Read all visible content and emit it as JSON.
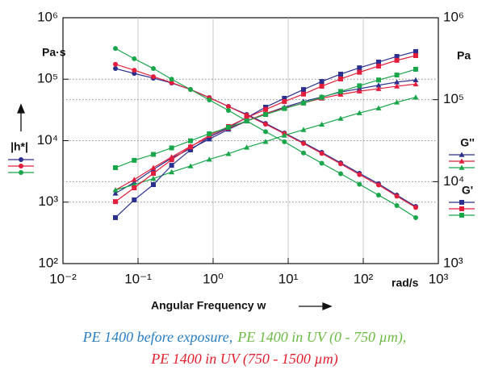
{
  "chart_data": {
    "type": "line",
    "log_x": true,
    "log_y": true,
    "grid": true,
    "x_label": "Angular Frequency w",
    "x_unit": "rad/s",
    "y_unit": "Pa·s",
    "y2_unit": "Pa",
    "xlim": [
      0.01,
      1000
    ],
    "xticks": [
      {
        "value": 0.01,
        "label": "10⁻²"
      },
      {
        "value": 0.1,
        "label": "10⁻¹"
      },
      {
        "value": 1,
        "label": "10⁰"
      },
      {
        "value": 10,
        "label": "10¹"
      },
      {
        "value": 100,
        "label": "10²"
      },
      {
        "value": 1000,
        "label": "10³"
      }
    ],
    "ylim": [
      100,
      1000000
    ],
    "yticks": [
      {
        "value": 100,
        "label": "10²"
      },
      {
        "value": 1000,
        "label": "10³"
      },
      {
        "value": 10000,
        "label": "10⁴"
      },
      {
        "value": 100000,
        "label": "10⁵"
      },
      {
        "value": 1000000,
        "label": "10⁶"
      }
    ],
    "y2lim": [
      1000,
      1000000
    ],
    "y2ticks": [
      {
        "value": 1000,
        "label": "10³"
      },
      {
        "value": 10000,
        "label": "10⁴"
      },
      {
        "value": 100000,
        "label": "10⁵"
      },
      {
        "value": 1000000,
        "label": "10⁶"
      }
    ],
    "x": [
      0.05,
      0.089,
      0.16,
      0.28,
      0.5,
      0.89,
      1.6,
      2.8,
      5,
      8.9,
      16,
      28,
      50,
      89,
      160,
      280,
      500
    ],
    "groups": [
      {
        "label": "|h*|",
        "axis": "y",
        "marker": "circle",
        "series": [
          {
            "color": "#2b2f8f",
            "values": [
              149000,
              124000,
              104000,
              86700,
              68000,
              50300,
              36100,
              26700,
              19100,
              13300,
              9270,
              6450,
              4360,
              2940,
              1990,
              1300,
              850
            ]
          },
          {
            "color": "#e31e3c",
            "values": [
              175000,
              140000,
              110000,
              88000,
              68000,
              50000,
              36000,
              26000,
              18500,
              13000,
              9000,
              6200,
              4200,
              2800,
              1900,
              1250,
              820
            ]
          },
          {
            "color": "#1aa64a",
            "values": [
              316000,
              215000,
              149000,
              100000,
              68000,
              46000,
              31000,
              21000,
              14000,
              9600,
              6300,
              4300,
              2900,
              1950,
              1300,
              880,
              560
            ]
          }
        ]
      },
      {
        "label": "G''",
        "axis": "y2",
        "marker": "triangle",
        "series": [
          {
            "color": "#2b2f8f",
            "values": [
              7200,
              9800,
              14100,
              19400,
              25300,
              33000,
              43500,
              55000,
              67600,
              81000,
              95000,
              108000,
              124000,
              136000,
              150000,
              164000,
              174000
            ]
          },
          {
            "color": "#e31e3c",
            "values": [
              7900,
              10600,
              14800,
              20000,
              27000,
              35000,
              45000,
              55000,
              67600,
              79000,
              91000,
              104000,
              116000,
              127000,
              136000,
              146000,
              155000
            ]
          },
          {
            "color": "#1aa64a",
            "values": [
              7900,
              9200,
              10900,
              13100,
              15500,
              18700,
              21900,
              26200,
              30800,
              36700,
              43000,
              50000,
              59000,
              69000,
              79000,
              93000,
              107000
            ]
          }
        ]
      },
      {
        "label": "G'",
        "axis": "y2",
        "marker": "square",
        "series": [
          {
            "color": "#2b2f8f",
            "values": [
              3640,
              5990,
              9200,
              15800,
              24400,
              35000,
              45900,
              60300,
              81000,
              104000,
              133000,
              167000,
              205000,
              245000,
              288000,
              337000,
              387000
            ]
          },
          {
            "color": "#e31e3c",
            "values": [
              5700,
              8400,
              12600,
              18500,
              26500,
              36700,
              47000,
              60300,
              76000,
              95000,
              117000,
              146000,
              179000,
              216000,
              257000,
              302000,
              345000
            ]
          },
          {
            "color": "#1aa64a",
            "values": [
              14800,
              18200,
              21500,
              25800,
              31500,
              38400,
              46000,
              55000,
              66000,
              78000,
              91000,
              107000,
              126000,
              148000,
              174000,
              200000,
              235000
            ]
          }
        ]
      }
    ],
    "caption": [
      {
        "text": "PE 1400 before exposure,",
        "color": "#2a7ec3"
      },
      {
        "text": "PE 1400 in UV (0 - 750 µm),",
        "color": "#6dbb45"
      },
      {
        "text": "PE 1400 in UV (750 - 1500 µm)",
        "color": "#e3202e"
      }
    ]
  }
}
